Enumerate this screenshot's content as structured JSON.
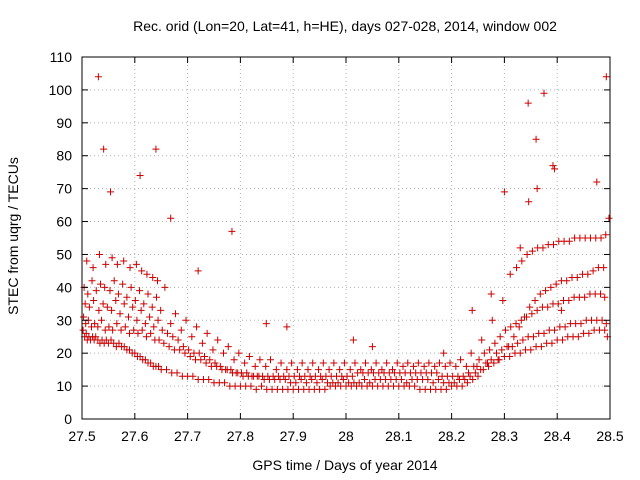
{
  "chart_data": {
    "type": "scatter",
    "title": "Rec. orid (Lon=20, Lat=41, h=HE), days 027-028, 2014, window 002",
    "xlabel": "GPS time / Days of year 2014",
    "ylabel": "STEC from uqrg / TECUs",
    "xlim": [
      27.5,
      28.5
    ],
    "ylim": [
      0,
      110
    ],
    "x_ticks": [
      27.5,
      27.6,
      27.7,
      27.8,
      27.9,
      28.0,
      28.1,
      28.2,
      28.3,
      28.4,
      28.5
    ],
    "x_tick_labels": [
      "27.5",
      "27.6",
      "27.7",
      "27.8",
      "27.9",
      "28",
      "28.1",
      "28.2",
      "28.3",
      "28.4",
      "28.5"
    ],
    "y_ticks": [
      0,
      10,
      20,
      30,
      40,
      50,
      60,
      70,
      80,
      90,
      100,
      110
    ],
    "y_tick_labels": [
      "0",
      "10",
      "20",
      "30",
      "40",
      "50",
      "60",
      "70",
      "80",
      "90",
      "100",
      "110"
    ],
    "grid": true,
    "marker": "plus",
    "color": "#cc0000",
    "series": [
      {
        "name": "STEC",
        "x": [
          27.502,
          27.505,
          27.508,
          27.51,
          27.513,
          27.516,
          27.52,
          27.523,
          27.526,
          27.53,
          27.534,
          27.538,
          27.542,
          27.546,
          27.55,
          27.555,
          27.56,
          27.565,
          27.57,
          27.575,
          27.58,
          27.585,
          27.59,
          27.595,
          27.6,
          27.605,
          27.61,
          27.615,
          27.62,
          27.625,
          27.63,
          27.635,
          27.64,
          27.645,
          27.65,
          27.66,
          27.67,
          27.68,
          27.69,
          27.7,
          27.71,
          27.72,
          27.73,
          27.74,
          27.75,
          27.76,
          27.77,
          27.78,
          27.79,
          27.8,
          27.81,
          27.82,
          27.83,
          27.84,
          27.85,
          27.86,
          27.87,
          27.88,
          27.89,
          27.9,
          27.91,
          27.92,
          27.93,
          27.94,
          27.95,
          27.96,
          27.97,
          27.98,
          27.99,
          28.0,
          28.01,
          28.02,
          28.03,
          28.04,
          28.05,
          28.06,
          28.07,
          28.08,
          28.09,
          28.1,
          28.11,
          28.12,
          28.13,
          28.14,
          28.15,
          28.16,
          28.17,
          28.18,
          28.19,
          28.2,
          28.21,
          28.22,
          28.23,
          28.24,
          28.25,
          28.26,
          28.27,
          28.28,
          28.29,
          28.3,
          28.31,
          28.32,
          28.33,
          28.34,
          28.35,
          28.36,
          28.37,
          28.38,
          28.39,
          28.4,
          28.41,
          28.42,
          28.43,
          28.44,
          28.45,
          28.46,
          28.47,
          28.48,
          28.49,
          28.495,
          27.503,
          27.507,
          27.512,
          27.518,
          27.524,
          27.53,
          27.537,
          27.544,
          27.551,
          27.558,
          27.566,
          27.574,
          27.582,
          27.59,
          27.598,
          27.606,
          27.614,
          27.622,
          27.63,
          27.638,
          27.646,
          27.655,
          27.665,
          27.675,
          27.685,
          27.695,
          27.705,
          27.715,
          27.725,
          27.735,
          27.745,
          27.755,
          27.765,
          27.775,
          27.785,
          27.795,
          27.805,
          27.815,
          27.825,
          27.835,
          27.845,
          27.855,
          27.865,
          27.875,
          27.885,
          27.895,
          27.905,
          27.915,
          27.925,
          27.935,
          27.945,
          27.955,
          27.965,
          27.975,
          27.985,
          27.995,
          28.005,
          28.015,
          28.025,
          28.035,
          28.045,
          28.055,
          28.065,
          28.075,
          28.085,
          28.095,
          28.105,
          28.115,
          28.125,
          28.135,
          28.145,
          28.155,
          28.165,
          28.175,
          28.185,
          28.195,
          28.205,
          28.215,
          28.225,
          28.235,
          28.245,
          28.255,
          28.265,
          28.275,
          28.285,
          28.295,
          28.305,
          28.315,
          28.325,
          28.335,
          28.345,
          28.355,
          28.365,
          28.375,
          28.385,
          28.395,
          28.405,
          28.415,
          28.425,
          28.435,
          28.445,
          28.455,
          28.465,
          28.475,
          28.485,
          28.493,
          27.506,
          27.514,
          27.522,
          27.532,
          27.54,
          27.548,
          27.556,
          27.564,
          27.572,
          27.58,
          27.588,
          27.596,
          27.604,
          27.612,
          27.62,
          27.628,
          27.636,
          27.644,
          27.652,
          27.662,
          27.672,
          27.682,
          27.692,
          27.702,
          27.712,
          27.722,
          27.732,
          27.742,
          27.752,
          27.762,
          27.772,
          27.782,
          27.792,
          27.802,
          27.812,
          27.822,
          27.832,
          27.842,
          27.852,
          27.862,
          27.872,
          27.882,
          27.892,
          27.902,
          27.912,
          27.922,
          27.932,
          27.942,
          27.952,
          27.962,
          27.972,
          27.982,
          27.992,
          28.002,
          28.012,
          28.022,
          28.032,
          28.042,
          28.052,
          28.062,
          28.072,
          28.082,
          28.092,
          28.102,
          28.112,
          28.122,
          28.132,
          28.142,
          28.152,
          28.162,
          28.172,
          28.182,
          28.192,
          28.202,
          28.212,
          28.222,
          28.232,
          28.242,
          28.252,
          28.262,
          28.272,
          28.282,
          28.292,
          28.302,
          28.312,
          28.322,
          28.332,
          28.342,
          28.352,
          28.362,
          28.372,
          28.382,
          28.392,
          28.402,
          28.412,
          28.422,
          28.432,
          28.442,
          28.452,
          28.462,
          28.472,
          28.482,
          28.49,
          27.504,
          27.511,
          27.519,
          27.527,
          27.535,
          27.543,
          27.553,
          27.561,
          27.569,
          27.577,
          27.585,
          27.593,
          27.601,
          27.609,
          27.617,
          27.625,
          27.633,
          27.641,
          27.649,
          27.668,
          27.688,
          27.708,
          27.728,
          27.748,
          27.768,
          27.788,
          27.808,
          27.828,
          27.848,
          27.868,
          27.888,
          27.908,
          27.928,
          27.948,
          27.968,
          27.988,
          28.008,
          28.028,
          28.048,
          28.068,
          28.088,
          28.108,
          28.128,
          28.148,
          28.168,
          28.188,
          28.208,
          28.228,
          28.248,
          28.268,
          28.288,
          28.308,
          28.318,
          28.328,
          28.338,
          28.348,
          28.358,
          28.368,
          28.378,
          28.388,
          28.398,
          28.408,
          28.418,
          28.428,
          28.438,
          28.448,
          28.458,
          28.468,
          28.478,
          28.488,
          27.509,
          27.521,
          27.533,
          27.545,
          27.557,
          27.567,
          27.579,
          27.591,
          27.603,
          27.613,
          27.623,
          27.634,
          27.643,
          27.657,
          27.677,
          27.697,
          27.717,
          27.737,
          27.757,
          27.777,
          27.797,
          27.817,
          27.837,
          27.857,
          27.877,
          27.897,
          27.917,
          27.937,
          27.957,
          27.977,
          27.997,
          28.017,
          28.037,
          28.057,
          28.077,
          28.097,
          28.117,
          28.137,
          28.157,
          28.177,
          28.197,
          28.217,
          28.237,
          28.257,
          28.277,
          28.297,
          28.311,
          28.323,
          28.333,
          28.343,
          28.353,
          28.363,
          28.373,
          28.383,
          28.393,
          28.403,
          28.413,
          28.423,
          28.433,
          28.443,
          28.453,
          28.463,
          28.473,
          28.483,
          28.492,
          27.531,
          27.541,
          27.554,
          27.61,
          27.64,
          27.668,
          27.72,
          27.784,
          27.849,
          27.888,
          28.014,
          28.05,
          28.185,
          28.239,
          28.275,
          28.3,
          28.345,
          28.36,
          28.362,
          28.375,
          28.392,
          28.408,
          28.475,
          28.493,
          28.498,
          28.395,
          28.346,
          28.33
        ],
        "y": [
          27,
          25,
          26,
          24,
          25,
          24,
          25,
          24,
          25,
          24,
          23,
          24,
          23,
          24,
          23,
          24,
          23,
          22,
          23,
          22,
          22,
          21,
          21,
          20,
          20,
          19,
          19,
          18,
          18,
          17,
          17,
          16,
          16,
          16,
          15,
          15,
          14,
          14,
          13,
          13,
          13,
          12,
          12,
          12,
          11,
          11,
          11,
          10,
          10,
          10,
          10,
          10,
          9,
          10,
          9,
          9,
          9,
          9,
          9,
          9,
          9,
          9,
          9,
          9,
          9,
          9,
          10,
          10,
          10,
          10,
          10,
          10,
          10,
          10,
          10,
          10,
          10,
          10,
          10,
          10,
          10,
          10,
          10,
          9,
          9,
          9,
          9,
          9,
          9,
          10,
          10,
          10,
          11,
          12,
          13,
          15,
          16,
          17,
          18,
          19,
          19,
          20,
          20,
          21,
          21,
          22,
          22,
          23,
          23,
          24,
          24,
          25,
          25,
          25,
          26,
          26,
          27,
          27,
          27,
          25,
          31,
          29,
          30,
          28,
          29,
          28,
          30,
          27,
          28,
          27,
          29,
          27,
          28,
          26,
          27,
          26,
          27,
          25,
          26,
          24,
          24,
          23,
          22,
          21,
          21,
          20,
          19,
          18,
          18,
          17,
          16,
          16,
          15,
          15,
          14,
          14,
          13,
          13,
          13,
          13,
          12,
          12,
          12,
          12,
          12,
          11,
          11,
          12,
          11,
          12,
          11,
          12,
          11,
          11,
          11,
          12,
          11,
          11,
          11,
          12,
          11,
          12,
          12,
          12,
          12,
          12,
          12,
          11,
          12,
          12,
          12,
          12,
          11,
          12,
          11,
          11,
          11,
          12,
          12,
          13,
          14,
          15,
          17,
          18,
          20,
          21,
          22,
          22,
          23,
          24,
          25,
          25,
          26,
          26,
          27,
          27,
          28,
          28,
          29,
          29,
          29,
          30,
          30,
          30,
          30,
          29,
          35,
          34,
          36,
          33,
          35,
          34,
          33,
          36,
          32,
          35,
          31,
          34,
          30,
          33,
          29,
          31,
          28,
          30,
          27,
          26,
          25,
          24,
          22,
          21,
          20,
          20,
          19,
          18,
          17,
          16,
          15,
          15,
          14,
          14,
          14,
          13,
          13,
          13,
          13,
          13,
          13,
          13,
          13,
          13,
          13,
          13,
          13,
          13,
          13,
          13,
          13,
          13,
          13,
          13,
          13,
          14,
          14,
          14,
          14,
          14,
          14,
          14,
          14,
          14,
          14,
          14,
          14,
          14,
          14,
          14,
          14,
          13,
          13,
          13,
          13,
          13,
          14,
          16,
          18,
          20,
          21,
          23,
          25,
          27,
          28,
          29,
          30,
          31,
          32,
          33,
          34,
          34,
          35,
          35,
          36,
          36,
          37,
          37,
          37,
          38,
          38,
          38,
          37,
          40,
          38,
          42,
          39,
          41,
          40,
          39,
          42,
          38,
          41,
          37,
          40,
          36,
          39,
          35,
          38,
          34,
          37,
          33,
          29,
          27,
          25,
          23,
          21,
          20,
          18,
          17,
          16,
          16,
          15,
          15,
          15,
          15,
          15,
          15,
          15,
          15,
          15,
          15,
          15,
          15,
          16,
          16,
          16,
          16,
          16,
          16,
          16,
          16,
          17,
          18,
          22,
          25,
          28,
          31,
          34,
          36,
          38,
          39,
          40,
          41,
          42,
          42,
          43,
          43,
          44,
          44,
          45,
          46,
          46,
          48,
          46,
          50,
          47,
          49,
          47,
          48,
          46,
          47,
          45,
          44,
          43,
          42,
          40,
          32,
          30,
          28,
          26,
          24,
          22,
          20,
          19,
          18,
          18,
          17,
          17,
          17,
          17,
          17,
          17,
          17,
          17,
          17,
          17,
          17,
          17,
          17,
          17,
          17,
          17,
          17,
          18,
          20,
          24,
          30,
          36,
          44,
          46,
          48,
          50,
          51,
          52,
          52,
          53,
          53,
          54,
          54,
          54,
          55,
          55,
          55,
          55,
          55,
          55,
          56,
          104,
          82,
          69,
          74,
          82,
          61,
          45,
          57,
          29,
          28,
          24,
          22,
          20,
          33,
          38,
          69,
          96,
          85,
          70,
          99,
          77,
          33,
          72,
          104,
          61,
          76,
          66,
          52
        ]
      }
    ]
  }
}
